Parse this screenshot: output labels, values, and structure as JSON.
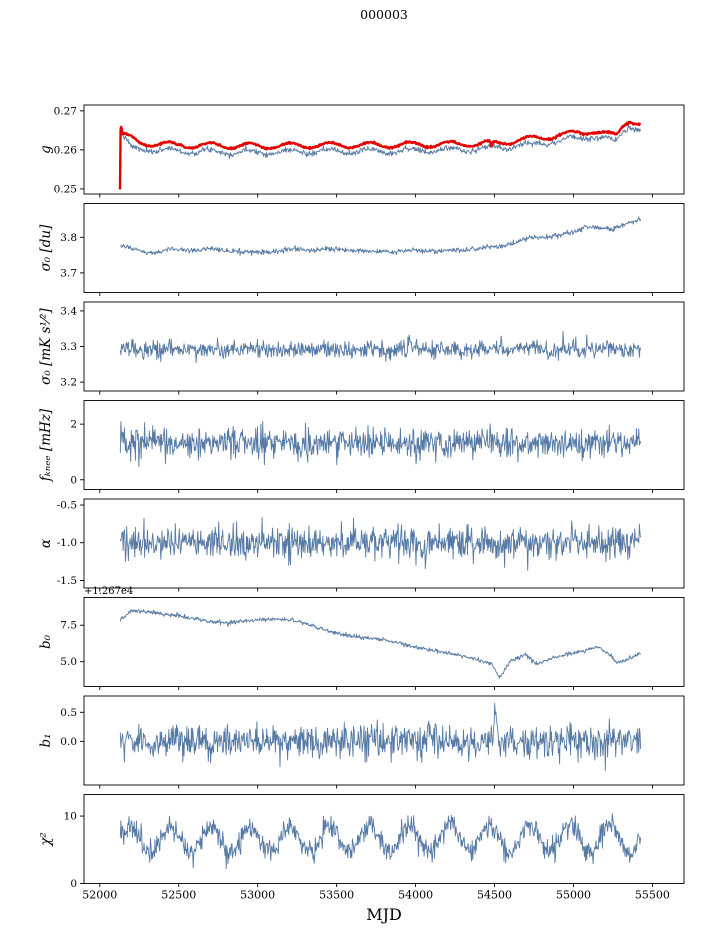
{
  "title": "000003",
  "xlabel": "MJD",
  "xlim": [
    51900,
    55700
  ],
  "x_ticks": [
    {
      "v": 52000,
      "label": "52000"
    },
    {
      "v": 52500,
      "label": "52500"
    },
    {
      "v": 53000,
      "label": "53000"
    },
    {
      "v": 53500,
      "label": "53500"
    },
    {
      "v": 54000,
      "label": "54000"
    },
    {
      "v": 54500,
      "label": "54500"
    },
    {
      "v": 55000,
      "label": "55000"
    },
    {
      "v": 55500,
      "label": "55500"
    }
  ],
  "colors": {
    "line_blue": "#567aa5",
    "line_red": "#e50000",
    "frame": "#000000"
  },
  "chart_data": [
    {
      "type": "line",
      "name": "g",
      "ylabel": "g",
      "ylim": [
        0.2487,
        0.2715
      ],
      "yticks": [
        {
          "v": 0.25,
          "label": "0.25"
        },
        {
          "v": 0.26,
          "label": "0.26"
        },
        {
          "v": 0.27,
          "label": "0.27"
        }
      ],
      "offset_text": "",
      "series": [
        {
          "name": "g-blue",
          "color": "#567aa5",
          "width": 0.9,
          "x_start": 52128,
          "x_end": 55425,
          "points": 900,
          "noise": 0.00035,
          "osc_amp": 0.0006,
          "osc_period": 253,
          "keypoints": [
            [
              52128,
              0.2612
            ],
            [
              52134,
              0.2641
            ],
            [
              52200,
              0.2603
            ],
            [
              52500,
              0.2597
            ],
            [
              53000,
              0.2594
            ],
            [
              53500,
              0.2596
            ],
            [
              54000,
              0.2598
            ],
            [
              54400,
              0.2602
            ],
            [
              54600,
              0.2608
            ],
            [
              54800,
              0.2618
            ],
            [
              55000,
              0.2628
            ],
            [
              55120,
              0.2636
            ],
            [
              55220,
              0.2624
            ],
            [
              55270,
              0.262
            ],
            [
              55320,
              0.2652
            ],
            [
              55360,
              0.2662
            ],
            [
              55425,
              0.2648
            ]
          ]
        },
        {
          "name": "g-red",
          "color": "#e50000",
          "width": 2.4,
          "x_start": 52128,
          "x_end": 55425,
          "points": 900,
          "noise": 0.00012,
          "osc_amp": 0.0007,
          "osc_period": 253,
          "keypoints": [
            [
              52128,
              0.25
            ],
            [
              52132,
              0.2665
            ],
            [
              52145,
              0.264
            ],
            [
              52250,
              0.2618
            ],
            [
              52500,
              0.2612
            ],
            [
              53000,
              0.261
            ],
            [
              53500,
              0.2612
            ],
            [
              54000,
              0.2613
            ],
            [
              54400,
              0.2616
            ],
            [
              54470,
              0.2616
            ],
            [
              54480,
              0.2599
            ],
            [
              54490,
              0.2616
            ],
            [
              54600,
              0.2622
            ],
            [
              54800,
              0.2632
            ],
            [
              55000,
              0.2642
            ],
            [
              55120,
              0.265
            ],
            [
              55220,
              0.2638
            ],
            [
              55270,
              0.2635
            ],
            [
              55320,
              0.2668
            ],
            [
              55360,
              0.2678
            ],
            [
              55425,
              0.2662
            ]
          ]
        }
      ]
    },
    {
      "type": "line",
      "name": "sigma0-du",
      "ylabel": "σ₀ [du]",
      "ylim": [
        3.645,
        3.895
      ],
      "yticks": [
        {
          "v": 3.7,
          "label": "3.7"
        },
        {
          "v": 3.8,
          "label": "3.8"
        }
      ],
      "offset_text": "",
      "series": [
        {
          "name": "sigma0-du",
          "color": "#567aa5",
          "width": 0.9,
          "x_start": 52130,
          "x_end": 55425,
          "points": 900,
          "noise": 0.0035,
          "osc_amp": 0.002,
          "osc_period": 253,
          "keypoints": [
            [
              52130,
              3.776
            ],
            [
              52200,
              3.768
            ],
            [
              52300,
              3.757
            ],
            [
              52500,
              3.766
            ],
            [
              52800,
              3.763
            ],
            [
              53000,
              3.757
            ],
            [
              53200,
              3.764
            ],
            [
              53500,
              3.766
            ],
            [
              53800,
              3.76
            ],
            [
              54000,
              3.762
            ],
            [
              54200,
              3.762
            ],
            [
              54400,
              3.768
            ],
            [
              54550,
              3.776
            ],
            [
              54700,
              3.795
            ],
            [
              54850,
              3.803
            ],
            [
              55000,
              3.813
            ],
            [
              55080,
              3.832
            ],
            [
              55150,
              3.828
            ],
            [
              55250,
              3.82
            ],
            [
              55320,
              3.838
            ],
            [
              55425,
              3.852
            ]
          ]
        }
      ]
    },
    {
      "type": "line",
      "name": "sigma0-mk",
      "ylabel": "σ₀ [mK s¹⁄²]",
      "ylim": [
        3.175,
        3.425
      ],
      "yticks": [
        {
          "v": 3.2,
          "label": "3.2"
        },
        {
          "v": 3.3,
          "label": "3.3"
        },
        {
          "v": 3.4,
          "label": "3.4"
        }
      ],
      "offset_text": "",
      "series": [
        {
          "name": "sigma0-mk",
          "color": "#567aa5",
          "width": 0.9,
          "x_start": 52130,
          "x_end": 55425,
          "points": 900,
          "noise": 0.012,
          "osc_amp": 0.004,
          "osc_period": 253,
          "keypoints": [
            [
              52130,
              3.292
            ],
            [
              55425,
              3.293
            ]
          ]
        }
      ]
    },
    {
      "type": "line",
      "name": "fknee",
      "ylabel": "fₖₙₑₑ [mHz]",
      "ylim": [
        -0.35,
        2.85
      ],
      "yticks": [
        {
          "v": 0,
          "label": "0"
        },
        {
          "v": 2,
          "label": "2"
        }
      ],
      "offset_text": "",
      "series": [
        {
          "name": "fknee",
          "color": "#567aa5",
          "width": 0.9,
          "x_start": 52130,
          "x_end": 55425,
          "points": 900,
          "noise": 0.27,
          "osc_amp": 0,
          "osc_period": 253,
          "keypoints": [
            [
              52130,
              1.32
            ],
            [
              55425,
              1.33
            ]
          ]
        }
      ]
    },
    {
      "type": "line",
      "name": "alpha",
      "ylabel": "α",
      "ylim": [
        -1.6,
        -0.42
      ],
      "yticks": [
        {
          "v": -1.5,
          "label": "-1.5"
        },
        {
          "v": -1.0,
          "label": "-1.0"
        },
        {
          "v": -0.5,
          "label": "-0.5"
        }
      ],
      "offset_text": "",
      "series": [
        {
          "name": "alpha",
          "color": "#567aa5",
          "width": 0.9,
          "x_start": 52130,
          "x_end": 55425,
          "points": 900,
          "noise": 0.11,
          "osc_amp": 0,
          "osc_period": 253,
          "keypoints": [
            [
              52130,
              -1.0
            ],
            [
              53500,
              -1.0
            ],
            [
              53600,
              -0.97
            ],
            [
              53700,
              -1.0
            ],
            [
              55425,
              -1.0
            ]
          ]
        }
      ]
    },
    {
      "type": "line",
      "name": "b0",
      "ylabel": "b₀",
      "ylim": [
        3.3,
        9.4
      ],
      "yticks": [
        {
          "v": 5.0,
          "label": "5.0"
        },
        {
          "v": 7.5,
          "label": "7.5"
        }
      ],
      "offset_text": "+1.267e4",
      "series": [
        {
          "name": "b0",
          "color": "#567aa5",
          "width": 0.9,
          "x_start": 52130,
          "x_end": 55425,
          "points": 900,
          "noise": 0.07,
          "osc_amp": 0,
          "osc_period": 253,
          "keypoints": [
            [
              52130,
              7.9
            ],
            [
              52200,
              8.5
            ],
            [
              52300,
              8.45
            ],
            [
              52420,
              8.25
            ],
            [
              52500,
              8.15
            ],
            [
              52600,
              7.95
            ],
            [
              52700,
              7.75
            ],
            [
              52800,
              7.6
            ],
            [
              52900,
              7.8
            ],
            [
              53000,
              7.85
            ],
            [
              53120,
              7.95
            ],
            [
              53250,
              7.8
            ],
            [
              53350,
              7.45
            ],
            [
              53450,
              7.1
            ],
            [
              53550,
              6.85
            ],
            [
              53700,
              6.6
            ],
            [
              53850,
              6.4
            ],
            [
              54000,
              6.0
            ],
            [
              54150,
              5.7
            ],
            [
              54300,
              5.4
            ],
            [
              54420,
              5.05
            ],
            [
              54480,
              4.9
            ],
            [
              54530,
              3.85
            ],
            [
              54600,
              5.0
            ],
            [
              54700,
              5.5
            ],
            [
              54760,
              4.85
            ],
            [
              54850,
              5.2
            ],
            [
              54950,
              5.5
            ],
            [
              55050,
              5.7
            ],
            [
              55150,
              6.0
            ],
            [
              55220,
              5.6
            ],
            [
              55270,
              4.95
            ],
            [
              55330,
              5.1
            ],
            [
              55425,
              5.6
            ]
          ]
        }
      ]
    },
    {
      "type": "line",
      "name": "b1",
      "ylabel": "b₁",
      "ylim": [
        -0.75,
        0.78
      ],
      "yticks": [
        {
          "v": 0.0,
          "label": "0.0"
        },
        {
          "v": 0.5,
          "label": "0.5"
        }
      ],
      "offset_text": "",
      "series": [
        {
          "name": "b1",
          "color": "#567aa5",
          "width": 0.9,
          "x_start": 52130,
          "x_end": 55425,
          "points": 900,
          "noise": 0.15,
          "osc_amp": 0,
          "osc_period": 253,
          "keypoints": [
            [
              52130,
              0.0
            ],
            [
              54490,
              0.0
            ],
            [
              54505,
              0.68
            ],
            [
              54520,
              0.0
            ],
            [
              55425,
              0.0
            ]
          ]
        }
      ]
    },
    {
      "type": "line",
      "name": "chi2",
      "ylabel": "χ²",
      "ylim": [
        0,
        13.2
      ],
      "yticks": [
        {
          "v": 0,
          "label": "0"
        },
        {
          "v": 10,
          "label": "10"
        }
      ],
      "offset_text": "",
      "series": [
        {
          "name": "chi2",
          "color": "#567aa5",
          "width": 0.9,
          "x_start": 52130,
          "x_end": 55425,
          "points": 900,
          "noise": 0.8,
          "osc_amp": 2.0,
          "osc_period": 253,
          "keypoints": [
            [
              52130,
              6.4
            ],
            [
              55425,
              6.8
            ]
          ]
        }
      ]
    }
  ]
}
